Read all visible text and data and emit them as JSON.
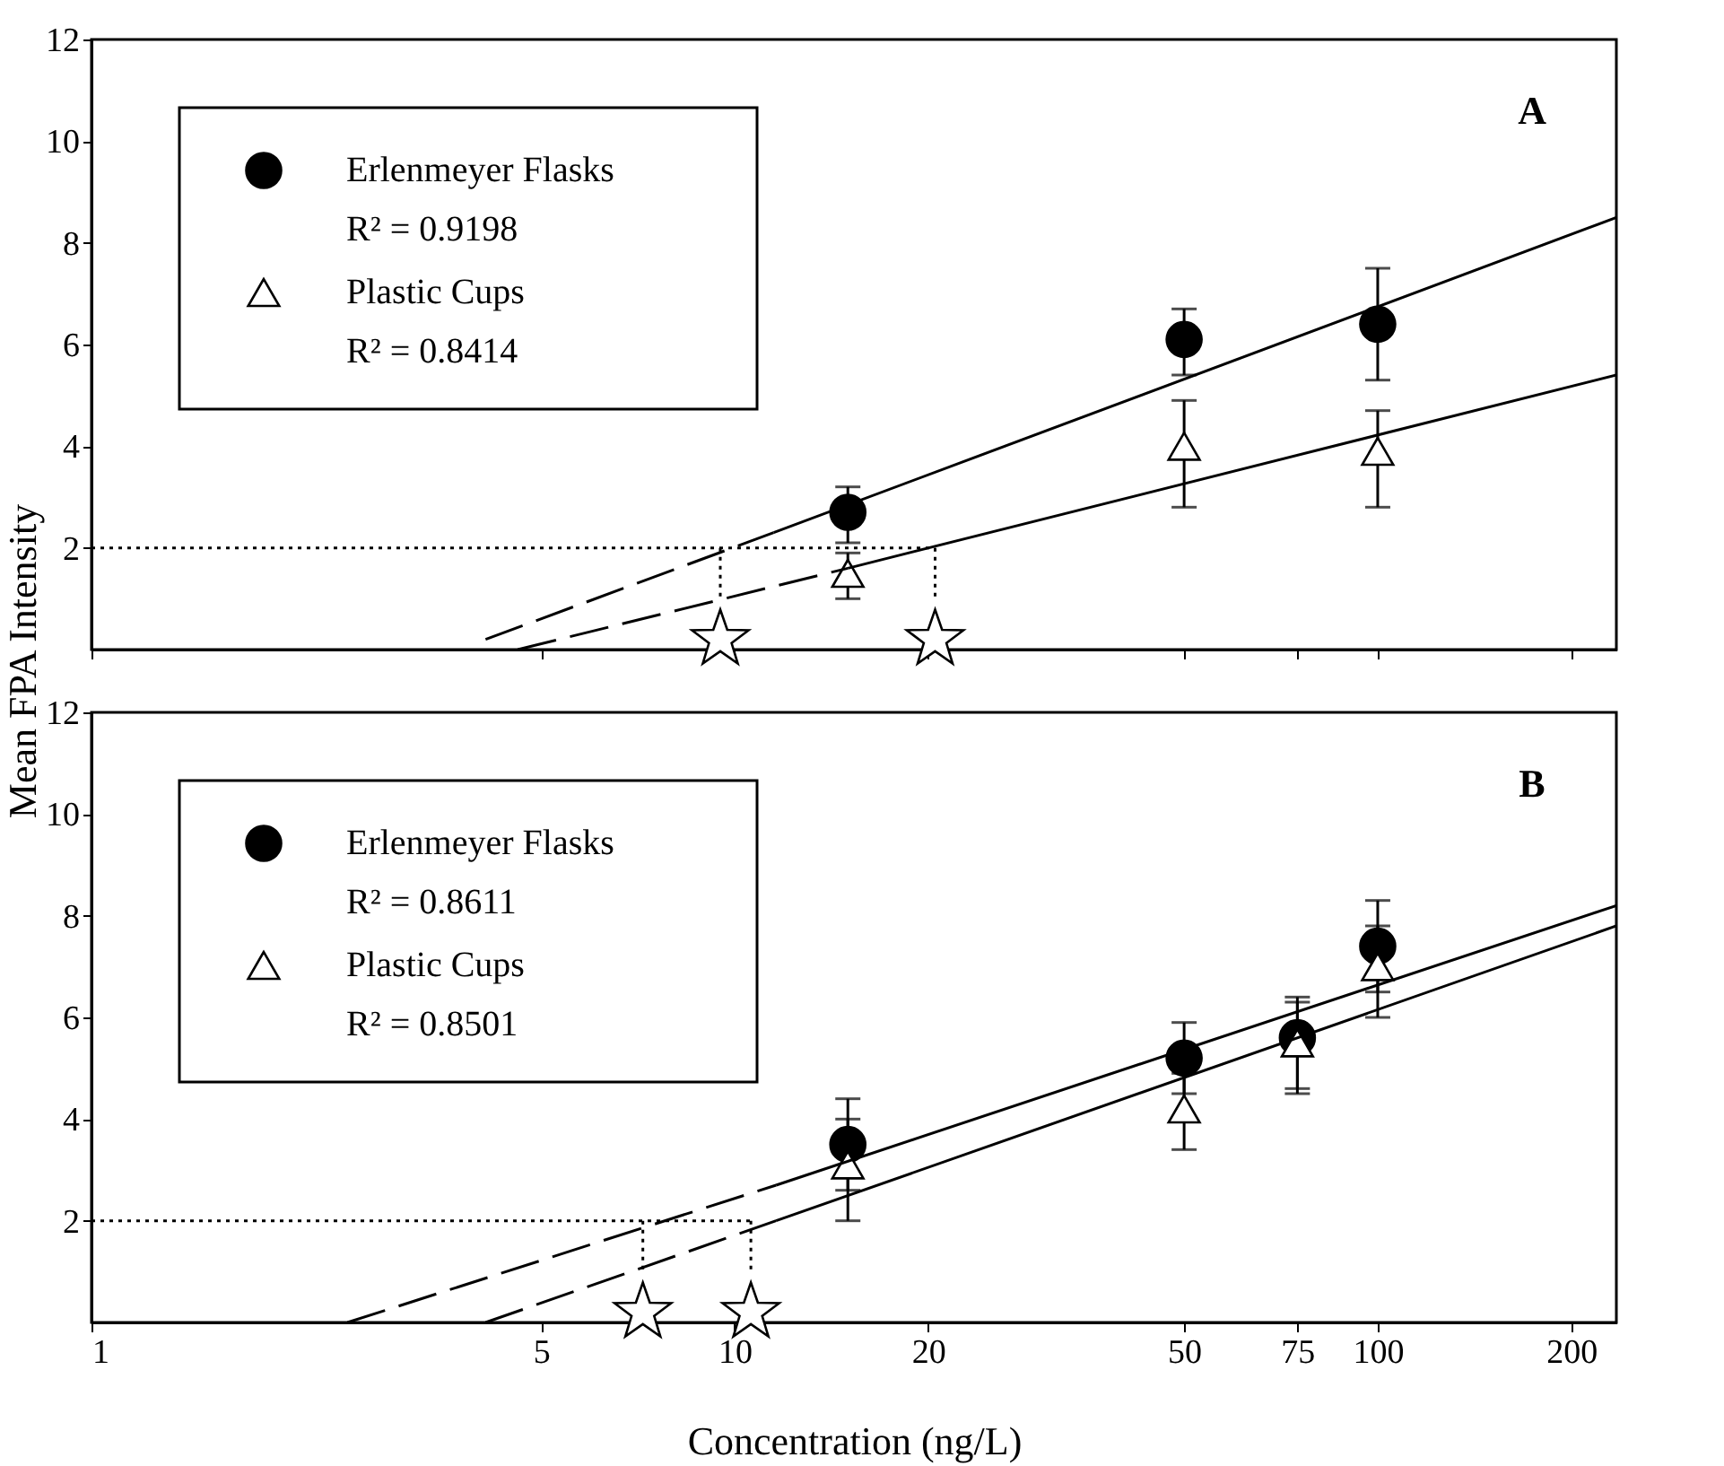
{
  "chart_data": [
    {
      "type": "scatter",
      "ylabel": "Mean FPA Intensity",
      "annotations": [
        "R² = 0.9198",
        "R² = 0.8414",
        "A"
      ],
      "xlim": [
        1,
        235
      ],
      "xticks": [
        1,
        5,
        10,
        20,
        50,
        75,
        100,
        200
      ],
      "ylim": [
        0,
        12
      ],
      "yticks": [
        2,
        4,
        6,
        8,
        10,
        12
      ],
      "log": "x",
      "grid": false,
      "legend": "top left",
      "tick_labels": "y",
      "series": [
        {
          "name": "Erlenmeyer Flasks",
          "marker": "circle",
          "color": "#000000",
          "x": [
            15,
            50,
            100
          ],
          "values": [
            2.7,
            6.1,
            6.4
          ],
          "errors": [
            [
              2.1,
              3.2
            ],
            [
              5.4,
              6.7
            ],
            [
              5.3,
              7.5
            ]
          ]
        },
        {
          "name": "Plastic Cups",
          "marker": "triangle",
          "color": "#ffffff",
          "x": [
            15,
            50,
            100
          ],
          "values": [
            1.5,
            4.0,
            3.9
          ],
          "errors": [
            [
              1.0,
              1.9
            ],
            [
              2.8,
              4.9
            ],
            [
              2.8,
              4.7
            ]
          ]
        },
        {
          "type": "line",
          "line_style": "dashed",
          "color": "#000000",
          "x": [
            4.1,
            11.5
          ],
          "values": [
            0.2,
            2.3
          ]
        },
        {
          "type": "line",
          "line_style": "solid",
          "color": "#000000",
          "x": [
            11.5,
            235
          ],
          "values": [
            2.3,
            8.5
          ]
        },
        {
          "type": "line",
          "line_style": "dashed",
          "color": "#000000",
          "x": [
            4.6,
            15
          ],
          "values": [
            0,
            1.6
          ]
        },
        {
          "type": "line",
          "line_style": "solid",
          "color": "#000000",
          "x": [
            15,
            235
          ],
          "values": [
            1.6,
            5.4
          ]
        },
        {
          "type": "line",
          "line_style": "dotted",
          "color": "#000000",
          "x": [
            1,
            20.5
          ],
          "values": [
            2,
            2
          ]
        },
        {
          "type": "line",
          "line_style": "dotted",
          "color": "#000000",
          "x": [
            9.5,
            9.5
          ],
          "values": [
            2,
            1.0
          ]
        },
        {
          "type": "line",
          "line_style": "dotted",
          "color": "#000000",
          "x": [
            20.5,
            20.5
          ],
          "values": [
            2,
            1.0
          ]
        },
        {
          "marker": "star",
          "color": "#ffffff",
          "x": [
            9.5,
            20.5
          ],
          "values": [
            0.2,
            0.2
          ]
        }
      ]
    },
    {
      "type": "scatter",
      "xlabel": "Concentration (ng/L)",
      "annotations": [
        "R² = 0.8611",
        "R² = 0.8501",
        "B"
      ],
      "xlim": [
        1,
        235
      ],
      "xticks": [
        1,
        5,
        10,
        20,
        50,
        75,
        100,
        200
      ],
      "ylim": [
        0,
        12
      ],
      "yticks": [
        2,
        4,
        6,
        8,
        10,
        12
      ],
      "log": "x",
      "grid": false,
      "legend": "top left",
      "series": [
        {
          "name": "Erlenmeyer Flasks",
          "marker": "circle",
          "color": "#000000",
          "x": [
            15,
            50,
            75,
            100
          ],
          "values": [
            3.5,
            5.2,
            5.6,
            7.4
          ],
          "errors": [
            [
              2.6,
              4.4
            ],
            [
              4.5,
              5.9
            ],
            [
              4.6,
              6.4
            ],
            [
              6.5,
              8.3
            ]
          ]
        },
        {
          "name": "Plastic Cups",
          "marker": "triangle",
          "color": "#ffffff",
          "x": [
            15,
            50,
            75,
            100
          ],
          "values": [
            3.1,
            4.2,
            5.5,
            7.0
          ],
          "errors": [
            [
              2.0,
              4.0
            ],
            [
              3.4,
              4.9
            ],
            [
              4.5,
              6.3
            ],
            [
              6.0,
              7.8
            ]
          ]
        },
        {
          "type": "line",
          "line_style": "dashed",
          "color": "#000000",
          "x": [
            2.5,
            11.6
          ],
          "values": [
            0,
            2.7
          ]
        },
        {
          "type": "line",
          "line_style": "solid",
          "color": "#000000",
          "x": [
            11.6,
            235
          ],
          "values": [
            2.7,
            8.2
          ]
        },
        {
          "type": "line",
          "line_style": "dashed",
          "color": "#000000",
          "x": [
            4.1,
            11.6
          ],
          "values": [
            0,
            2.0
          ]
        },
        {
          "type": "line",
          "line_style": "solid",
          "color": "#000000",
          "x": [
            11.6,
            235
          ],
          "values": [
            2.0,
            7.8
          ]
        },
        {
          "type": "line",
          "line_style": "dotted",
          "color": "#000000",
          "x": [
            1,
            10.6
          ],
          "values": [
            2,
            2
          ]
        },
        {
          "type": "line",
          "line_style": "dotted",
          "color": "#000000",
          "x": [
            7.2,
            7.2
          ],
          "values": [
            2,
            1.0
          ]
        },
        {
          "type": "line",
          "line_style": "dotted",
          "color": "#000000",
          "x": [
            10.6,
            10.6
          ],
          "values": [
            2,
            1.0
          ]
        },
        {
          "marker": "star",
          "color": "#ffffff",
          "x": [
            7.2,
            10.6
          ],
          "values": [
            0.2,
            0.2
          ]
        }
      ]
    }
  ]
}
